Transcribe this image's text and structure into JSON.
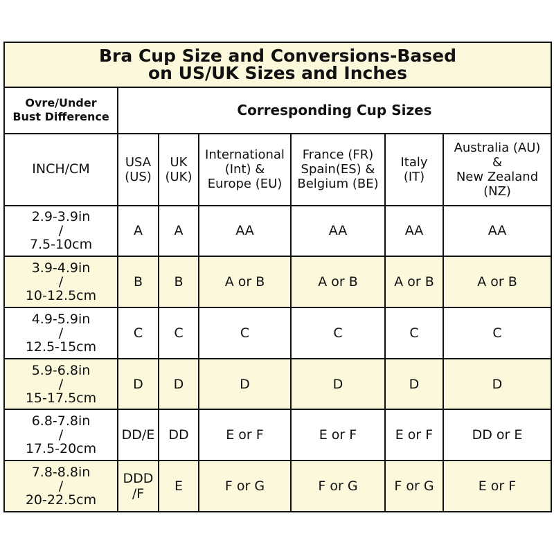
{
  "title": "Bra Cup Size and Conversions-Based\non US/UK Sizes and Inches",
  "header": {
    "difference_label": "Ovre/Under\nBust Difference",
    "corresponding_label": "Corresponding Cup Sizes"
  },
  "columns": [
    "INCH/CM",
    "USA\n(US)",
    "UK\n(UK)",
    "International\n(Int) &\nEurope (EU)",
    "France (FR)\nSpain(ES) &\nBelgium (BE)",
    "Italy\n(IT)",
    "Australia (AU)\n&\nNew Zealand\n(NZ)"
  ],
  "rows": [
    [
      "2.9-3.9in\n/\n7.5-10cm",
      "A",
      "A",
      "AA",
      "AA",
      "AA",
      "AA"
    ],
    [
      "3.9-4.9in\n/\n10-12.5cm",
      "B",
      "B",
      "A or B",
      "A or B",
      "A or B",
      "A or B"
    ],
    [
      "4.9-5.9in\n/\n12.5-15cm",
      "C",
      "C",
      "C",
      "C",
      "C",
      "C"
    ],
    [
      "5.9-6.8in\n/\n15-17.5cm",
      "D",
      "D",
      "D",
      "D",
      "D",
      "D"
    ],
    [
      "6.8-7.8in\n/\n17.5-20cm",
      "DD/E",
      "DD",
      "E or F",
      "E or F",
      "E or F",
      "DD or E"
    ],
    [
      "7.8-8.8in\n/\n20-22.5cm",
      "DDD\n/F",
      "E",
      "F or G",
      "F or G",
      "F or G",
      "E or F"
    ]
  ],
  "colors": {
    "highlight": "#fbf8dc",
    "border": "#111111"
  }
}
